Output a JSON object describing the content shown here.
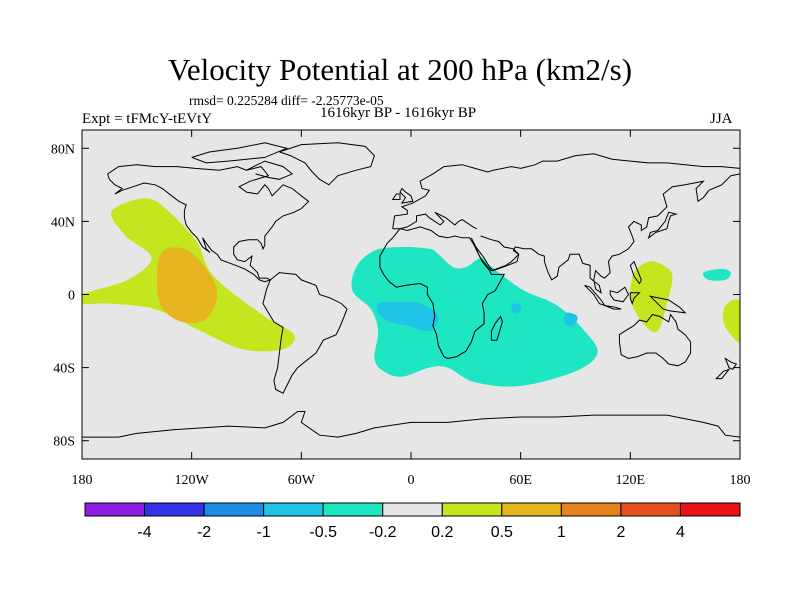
{
  "title": "Velocity Potential at 200 hPa (km2/s)",
  "stats": "rmsd= 0.225284 diff= -2.25773e-05",
  "expt": "Expt = tFMcY-tEVtY",
  "period": "1616kyr BP - 1616kyr BP",
  "season": "JJA",
  "chart_data": {
    "type": "contour-map",
    "projection": "cylindrical-equidistant",
    "variable": "Velocity Potential at 200 hPa",
    "units": "km2/s",
    "x_ticks": [
      {
        "value": -180,
        "label": "180"
      },
      {
        "value": -120,
        "label": "120W"
      },
      {
        "value": -60,
        "label": "60W"
      },
      {
        "value": 0,
        "label": "0"
      },
      {
        "value": 60,
        "label": "60E"
      },
      {
        "value": 120,
        "label": "120E"
      },
      {
        "value": 180,
        "label": "180"
      }
    ],
    "y_ticks": [
      {
        "value": 80,
        "label": "80N"
      },
      {
        "value": 40,
        "label": "40N"
      },
      {
        "value": 0,
        "label": "0"
      },
      {
        "value": -40,
        "label": "40S"
      },
      {
        "value": -80,
        "label": "80S"
      }
    ],
    "xlim": [
      -180,
      180
    ],
    "ylim": [
      -90,
      90
    ],
    "colorbar": {
      "colors": [
        "#8c1ee6",
        "#3232e6",
        "#1e8ce6",
        "#1ec3e6",
        "#1ee6c3",
        "#e6e6e6",
        "#c3e61e",
        "#e6b41e",
        "#e6821e",
        "#e6501e",
        "#e61414"
      ],
      "labels": [
        "-4",
        "-2",
        "-1",
        "-0.5",
        "-0.2",
        "0.2",
        "0.5",
        "1",
        "2",
        "4"
      ]
    },
    "regions": [
      {
        "name": "east-pacific-positive",
        "level": 0.5,
        "color": "#c3e61e",
        "points": [
          [
            -164,
            45
          ],
          [
            -150,
            52
          ],
          [
            -138,
            50
          ],
          [
            -118,
            30
          ],
          [
            -108,
            10
          ],
          [
            -80,
            -12
          ],
          [
            -64,
            -22
          ],
          [
            -70,
            -30
          ],
          [
            -92,
            -30
          ],
          [
            -115,
            -20
          ],
          [
            -140,
            -8
          ],
          [
            -165,
            -5
          ],
          [
            -180,
            -5
          ],
          [
            -180,
            0
          ],
          [
            -155,
            8
          ],
          [
            -142,
            20
          ],
          [
            -156,
            32
          ]
        ]
      },
      {
        "name": "east-pacific-max",
        "level": 1,
        "color": "#e6b41e",
        "points": [
          [
            -137,
            22
          ],
          [
            -124,
            25
          ],
          [
            -112,
            14
          ],
          [
            -106,
            0
          ],
          [
            -113,
            -14
          ],
          [
            -128,
            -14
          ],
          [
            -138,
            -3
          ]
        ]
      },
      {
        "name": "africa-indian-negative",
        "level": -0.5,
        "color": "#1ee6c3",
        "points": [
          [
            -30,
            15
          ],
          [
            -20,
            24
          ],
          [
            -5,
            26
          ],
          [
            10,
            25
          ],
          [
            15,
            22
          ],
          [
            23,
            15
          ],
          [
            30,
            15
          ],
          [
            38,
            20
          ],
          [
            42,
            17
          ],
          [
            48,
            12
          ],
          [
            62,
            2
          ],
          [
            80,
            -6
          ],
          [
            95,
            -20
          ],
          [
            102,
            -32
          ],
          [
            90,
            -42
          ],
          [
            60,
            -50
          ],
          [
            35,
            -48
          ],
          [
            20,
            -40
          ],
          [
            10,
            -40
          ],
          [
            -5,
            -45
          ],
          [
            -15,
            -42
          ],
          [
            -20,
            -35
          ],
          [
            -18,
            -20
          ],
          [
            -22,
            -8
          ],
          [
            -32,
            2
          ]
        ]
      },
      {
        "name": "west-africa-min",
        "level": -1,
        "color": "#1ec3e6",
        "points": [
          [
            -18,
            -5
          ],
          [
            -10,
            -4
          ],
          [
            5,
            -5
          ],
          [
            15,
            -12
          ],
          [
            10,
            -20
          ],
          [
            -2,
            -17
          ],
          [
            -12,
            -15
          ],
          [
            -18,
            -10
          ]
        ]
      },
      {
        "name": "indian-ocean-min-1",
        "level": -1,
        "color": "#1ec3e6",
        "points": [
          [
            56,
            -5
          ],
          [
            60,
            -6
          ],
          [
            59,
            -10
          ],
          [
            55,
            -9
          ]
        ]
      },
      {
        "name": "indian-ocean-min-2",
        "level": -1,
        "color": "#1ec3e6",
        "points": [
          [
            85,
            -10
          ],
          [
            91,
            -12
          ],
          [
            89,
            -17
          ],
          [
            84,
            -16
          ]
        ]
      },
      {
        "name": "maritime-positive",
        "level": 0.5,
        "color": "#c3e61e",
        "points": [
          [
            122,
            12
          ],
          [
            130,
            18
          ],
          [
            138,
            16
          ],
          [
            143,
            10
          ],
          [
            140,
            -5
          ],
          [
            135,
            -20
          ],
          [
            128,
            -17
          ],
          [
            122,
            -8
          ],
          [
            120,
            0
          ]
        ]
      },
      {
        "name": "central-pacific-negative",
        "level": -0.5,
        "color": "#1ee6c3",
        "points": [
          [
            160,
            12
          ],
          [
            170,
            14
          ],
          [
            175,
            12
          ],
          [
            172,
            8
          ],
          [
            163,
            8
          ]
        ]
      },
      {
        "name": "dateline-positive",
        "level": 0.5,
        "color": "#c3e61e",
        "points": [
          [
            180,
            -4
          ],
          [
            172,
            -6
          ],
          [
            171,
            -15
          ],
          [
            175,
            -22
          ],
          [
            180,
            -25
          ]
        ]
      }
    ]
  }
}
